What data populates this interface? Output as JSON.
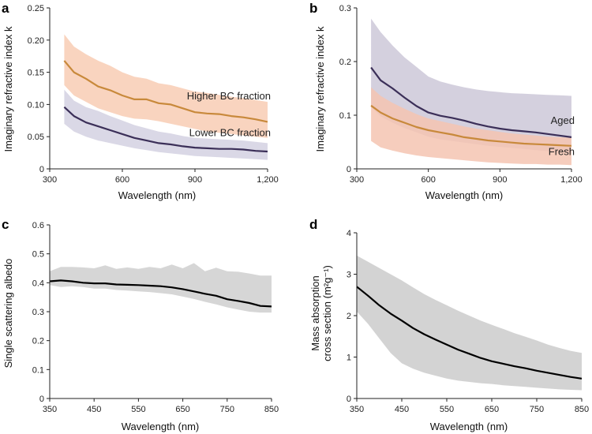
{
  "chart_data": [
    {
      "panel": "a",
      "type": "line",
      "xlabel": "Wavelength (nm)",
      "ylabel": "Imaginary refractive index k",
      "xlim": [
        300,
        1200
      ],
      "ylim": [
        0,
        0.25
      ],
      "xticks": [
        {
          "v": 300,
          "t": "300"
        },
        {
          "v": 600,
          "t": "600"
        },
        {
          "v": 900,
          "t": "900"
        },
        {
          "v": 1200,
          "t": "1,200"
        }
      ],
      "yticks": [
        {
          "v": 0,
          "t": "0"
        },
        {
          "v": 0.05,
          "t": "0.05"
        },
        {
          "v": 0.1,
          "t": "0.10"
        },
        {
          "v": 0.15,
          "t": "0.15"
        },
        {
          "v": 0.2,
          "t": "0.20"
        },
        {
          "v": 0.25,
          "t": "0.25"
        }
      ],
      "series": [
        {
          "name": "Higher BC fraction",
          "color": "#c8893b",
          "band_color": "#f8cdb4",
          "x": [
            360,
            400,
            450,
            500,
            550,
            600,
            650,
            700,
            750,
            800,
            850,
            900,
            950,
            1000,
            1050,
            1100,
            1150,
            1200
          ],
          "y": [
            0.168,
            0.15,
            0.14,
            0.128,
            0.122,
            0.114,
            0.108,
            0.108,
            0.102,
            0.1,
            0.094,
            0.088,
            0.086,
            0.085,
            0.082,
            0.08,
            0.077,
            0.073
          ],
          "upper": [
            0.209,
            0.19,
            0.178,
            0.168,
            0.16,
            0.15,
            0.143,
            0.14,
            0.133,
            0.13,
            0.125,
            0.12,
            0.118,
            0.115,
            0.112,
            0.11,
            0.107,
            0.104
          ],
          "lower": [
            0.13,
            0.114,
            0.104,
            0.094,
            0.088,
            0.082,
            0.078,
            0.077,
            0.074,
            0.07,
            0.066,
            0.062,
            0.058,
            0.056,
            0.054,
            0.052,
            0.05,
            0.048
          ]
        },
        {
          "name": "Lower BC fraction",
          "color": "#3b2f58",
          "band_color": "#d4d1e2",
          "x": [
            360,
            400,
            450,
            500,
            550,
            600,
            650,
            700,
            750,
            800,
            850,
            900,
            950,
            1000,
            1050,
            1100,
            1150,
            1200
          ],
          "y": [
            0.096,
            0.082,
            0.072,
            0.066,
            0.06,
            0.054,
            0.048,
            0.044,
            0.04,
            0.038,
            0.035,
            0.033,
            0.032,
            0.031,
            0.031,
            0.03,
            0.028,
            0.027
          ],
          "upper": [
            0.123,
            0.106,
            0.096,
            0.09,
            0.082,
            0.075,
            0.068,
            0.063,
            0.058,
            0.055,
            0.051,
            0.048,
            0.047,
            0.046,
            0.045,
            0.044,
            0.042,
            0.04
          ],
          "lower": [
            0.07,
            0.058,
            0.05,
            0.044,
            0.04,
            0.036,
            0.032,
            0.029,
            0.026,
            0.024,
            0.022,
            0.02,
            0.019,
            0.018,
            0.017,
            0.016,
            0.015,
            0.014
          ]
        }
      ],
      "annotations": [
        {
          "text": "Higher BC fraction",
          "x": 1200,
          "y": 0.108,
          "anchor": "end"
        },
        {
          "text": "Lower BC fraction",
          "x": 1200,
          "y": 0.051,
          "anchor": "end"
        }
      ]
    },
    {
      "panel": "b",
      "type": "line",
      "xlabel": "Wavelength (nm)",
      "ylabel": "Imaginary refractive index k",
      "xlim": [
        300,
        1200
      ],
      "ylim": [
        0,
        0.3
      ],
      "xticks": [
        {
          "v": 300,
          "t": "300"
        },
        {
          "v": 600,
          "t": "600"
        },
        {
          "v": 900,
          "t": "900"
        },
        {
          "v": 1200,
          "t": "1,200"
        }
      ],
      "yticks": [
        {
          "v": 0,
          "t": "0"
        },
        {
          "v": 0.1,
          "t": "0.1"
        },
        {
          "v": 0.2,
          "t": "0.2"
        },
        {
          "v": 0.3,
          "t": "0.3"
        }
      ],
      "series": [
        {
          "name": "Aged",
          "color": "#3b2f58",
          "band_color": "#cdc8d8",
          "x": [
            360,
            400,
            450,
            500,
            550,
            600,
            650,
            700,
            750,
            800,
            850,
            900,
            950,
            1000,
            1050,
            1100,
            1150,
            1200
          ],
          "y": [
            0.189,
            0.165,
            0.15,
            0.133,
            0.117,
            0.105,
            0.099,
            0.095,
            0.09,
            0.084,
            0.079,
            0.075,
            0.072,
            0.07,
            0.068,
            0.065,
            0.062,
            0.059
          ],
          "upper": [
            0.28,
            0.255,
            0.23,
            0.208,
            0.19,
            0.172,
            0.163,
            0.157,
            0.152,
            0.148,
            0.145,
            0.143,
            0.141,
            0.14,
            0.139,
            0.138,
            0.137,
            0.136
          ],
          "lower": [
            0.115,
            0.098,
            0.086,
            0.076,
            0.068,
            0.06,
            0.055,
            0.052,
            0.049,
            0.046,
            0.043,
            0.041,
            0.039,
            0.037,
            0.035,
            0.033,
            0.031,
            0.03
          ]
        },
        {
          "name": "Fresh",
          "color": "#c8893b",
          "band_color": "#f5c4b2",
          "x": [
            360,
            400,
            450,
            500,
            550,
            600,
            650,
            700,
            750,
            800,
            850,
            900,
            950,
            1000,
            1050,
            1100,
            1150,
            1200
          ],
          "y": [
            0.118,
            0.105,
            0.094,
            0.086,
            0.078,
            0.072,
            0.068,
            0.064,
            0.059,
            0.056,
            0.053,
            0.051,
            0.049,
            0.047,
            0.046,
            0.045,
            0.044,
            0.043
          ],
          "upper": [
            0.152,
            0.136,
            0.123,
            0.112,
            0.102,
            0.094,
            0.089,
            0.084,
            0.079,
            0.075,
            0.072,
            0.069,
            0.066,
            0.064,
            0.062,
            0.06,
            0.059,
            0.058
          ],
          "lower": [
            0.052,
            0.04,
            0.034,
            0.029,
            0.025,
            0.022,
            0.02,
            0.018,
            0.016,
            0.014,
            0.012,
            0.011,
            0.01,
            0.009,
            0.009,
            0.008,
            0.008,
            0.007
          ]
        }
      ],
      "annotations": [
        {
          "text": "Aged",
          "x": 1200,
          "y": 0.084,
          "anchor": "end"
        },
        {
          "text": "Fresh",
          "x": 1200,
          "y": 0.026,
          "anchor": "end"
        }
      ]
    },
    {
      "panel": "c",
      "type": "line",
      "xlabel": "Wavelength (nm)",
      "ylabel": "Single scattering albedo",
      "xlim": [
        350,
        850
      ],
      "ylim": [
        0,
        0.6
      ],
      "xticks": [
        {
          "v": 350,
          "t": "350"
        },
        {
          "v": 450,
          "t": "450"
        },
        {
          "v": 550,
          "t": "550"
        },
        {
          "v": 650,
          "t": "650"
        },
        {
          "v": 750,
          "t": "750"
        },
        {
          "v": 850,
          "t": "850"
        }
      ],
      "yticks": [
        {
          "v": 0,
          "t": "0"
        },
        {
          "v": 0.1,
          "t": "0.1"
        },
        {
          "v": 0.2,
          "t": "0.2"
        },
        {
          "v": 0.3,
          "t": "0.3"
        },
        {
          "v": 0.4,
          "t": "0.4"
        },
        {
          "v": 0.5,
          "t": "0.5"
        },
        {
          "v": 0.6,
          "t": "0.6"
        }
      ],
      "series": [
        {
          "color": "#000000",
          "band_color": "#cfcfcf",
          "x": [
            350,
            375,
            400,
            425,
            450,
            475,
            500,
            525,
            550,
            575,
            600,
            625,
            650,
            675,
            700,
            725,
            750,
            775,
            800,
            825,
            850
          ],
          "y": [
            0.405,
            0.408,
            0.405,
            0.4,
            0.398,
            0.398,
            0.394,
            0.393,
            0.392,
            0.39,
            0.388,
            0.384,
            0.378,
            0.37,
            0.362,
            0.355,
            0.343,
            0.337,
            0.33,
            0.32,
            0.318
          ],
          "upper": [
            0.44,
            0.455,
            0.455,
            0.453,
            0.45,
            0.46,
            0.448,
            0.453,
            0.448,
            0.455,
            0.45,
            0.463,
            0.45,
            0.468,
            0.44,
            0.452,
            0.44,
            0.438,
            0.432,
            0.425,
            0.425
          ],
          "lower": [
            0.392,
            0.385,
            0.388,
            0.385,
            0.38,
            0.38,
            0.375,
            0.373,
            0.37,
            0.368,
            0.364,
            0.36,
            0.352,
            0.344,
            0.334,
            0.325,
            0.315,
            0.307,
            0.3,
            0.297,
            0.297
          ]
        }
      ]
    },
    {
      "panel": "d",
      "type": "line",
      "xlabel": "Wavelength (nm)",
      "ylabel": [
        "Mass absorption",
        "cross section (m²g⁻¹)"
      ],
      "xlim": [
        350,
        850
      ],
      "ylim": [
        0,
        4
      ],
      "xticks": [
        {
          "v": 350,
          "t": "350"
        },
        {
          "v": 450,
          "t": "450"
        },
        {
          "v": 550,
          "t": "550"
        },
        {
          "v": 650,
          "t": "650"
        },
        {
          "v": 750,
          "t": "750"
        },
        {
          "v": 850,
          "t": "850"
        }
      ],
      "yticks": [
        {
          "v": 0,
          "t": "0"
        },
        {
          "v": 1,
          "t": "1"
        },
        {
          "v": 2,
          "t": "2"
        },
        {
          "v": 3,
          "t": "3"
        },
        {
          "v": 4,
          "t": "4"
        }
      ],
      "series": [
        {
          "color": "#000000",
          "band_color": "#cbcbcb",
          "x": [
            350,
            375,
            400,
            425,
            450,
            475,
            500,
            525,
            550,
            575,
            600,
            625,
            650,
            675,
            700,
            725,
            750,
            775,
            800,
            825,
            850
          ],
          "y": [
            2.7,
            2.48,
            2.25,
            2.05,
            1.88,
            1.7,
            1.55,
            1.42,
            1.3,
            1.18,
            1.08,
            0.98,
            0.9,
            0.84,
            0.78,
            0.73,
            0.67,
            0.62,
            0.57,
            0.52,
            0.48
          ],
          "upper": [
            3.45,
            3.3,
            3.15,
            3.0,
            2.85,
            2.68,
            2.52,
            2.38,
            2.25,
            2.12,
            2.0,
            1.88,
            1.78,
            1.68,
            1.58,
            1.49,
            1.4,
            1.3,
            1.22,
            1.15,
            1.1
          ],
          "lower": [
            2.1,
            1.8,
            1.45,
            1.1,
            0.85,
            0.72,
            0.62,
            0.55,
            0.48,
            0.43,
            0.4,
            0.37,
            0.35,
            0.32,
            0.3,
            0.28,
            0.26,
            0.24,
            0.22,
            0.21,
            0.2
          ]
        }
      ]
    }
  ]
}
